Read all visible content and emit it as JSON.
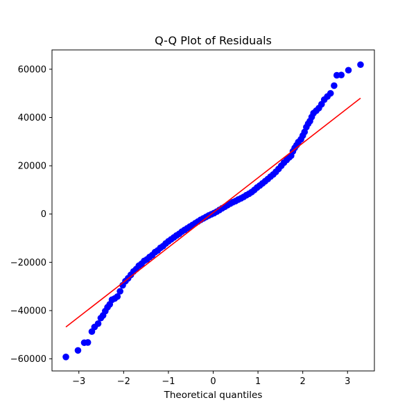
{
  "chart_data": {
    "type": "scatter",
    "title": "Q-Q Plot of Residuals",
    "xlabel": "Theoretical quantiles",
    "ylabel": "",
    "xlim": [
      -3.6,
      3.6
    ],
    "ylim": [
      -65000,
      68000
    ],
    "x_ticks": [
      -3,
      -2,
      -1,
      0,
      1,
      2,
      3
    ],
    "x_tick_labels": [
      "−3",
      "−2",
      "−1",
      "0",
      "1",
      "2",
      "3"
    ],
    "y_ticks": [
      -60000,
      -40000,
      -20000,
      0,
      20000,
      40000,
      60000
    ],
    "y_tick_labels": [
      "−60000",
      "−40000",
      "−20000",
      "0",
      "20000",
      "40000",
      "60000"
    ],
    "grid": false,
    "series": [
      {
        "kind": "points",
        "color": "#0000ff",
        "points": [
          [
            -3.29,
            -59200
          ],
          [
            -3.02,
            -56500
          ],
          [
            -2.88,
            -53300
          ],
          [
            -2.8,
            -53200
          ],
          [
            -2.71,
            -48700
          ],
          [
            -2.65,
            -46800
          ],
          [
            -2.57,
            -45400
          ],
          [
            -2.51,
            -43100
          ],
          [
            -2.46,
            -42000
          ],
          [
            -2.41,
            -40200
          ],
          [
            -2.36,
            -38600
          ],
          [
            -2.31,
            -37400
          ],
          [
            -2.26,
            -35500
          ],
          [
            -2.2,
            -35000
          ],
          [
            -2.14,
            -34200
          ],
          [
            -2.08,
            -32000
          ],
          [
            -2.02,
            -29500
          ],
          [
            -1.96,
            -27800
          ],
          [
            -1.9,
            -26600
          ],
          [
            -1.84,
            -25200
          ],
          [
            -1.78,
            -23800
          ],
          [
            -1.72,
            -22800
          ],
          [
            -1.66,
            -21400
          ],
          [
            -1.6,
            -20600
          ],
          [
            -1.54,
            -19400
          ],
          [
            -1.48,
            -18800
          ],
          [
            -1.42,
            -17800
          ],
          [
            -1.36,
            -17000
          ],
          [
            -1.3,
            -15800
          ],
          [
            -1.24,
            -15100
          ],
          [
            -1.18,
            -14000
          ],
          [
            -1.12,
            -13300
          ],
          [
            -1.06,
            -12200
          ],
          [
            -1.0,
            -11300
          ],
          [
            -0.94,
            -10500
          ],
          [
            -0.88,
            -9700
          ],
          [
            -0.82,
            -8900
          ],
          [
            -0.76,
            -8200
          ],
          [
            -0.7,
            -7300
          ],
          [
            -0.64,
            -6600
          ],
          [
            -0.58,
            -5900
          ],
          [
            -0.52,
            -5200
          ],
          [
            -0.46,
            -4500
          ],
          [
            -0.4,
            -3800
          ],
          [
            -0.34,
            -3100
          ],
          [
            -0.28,
            -2400
          ],
          [
            -0.22,
            -1800
          ],
          [
            -0.16,
            -1200
          ],
          [
            -0.1,
            -600
          ],
          [
            -0.04,
            -100
          ],
          [
            0.02,
            400
          ],
          [
            0.08,
            1000
          ],
          [
            0.14,
            1700
          ],
          [
            0.2,
            2400
          ],
          [
            0.26,
            3000
          ],
          [
            0.32,
            3700
          ],
          [
            0.38,
            4300
          ],
          [
            0.44,
            4900
          ],
          [
            0.5,
            5400
          ],
          [
            0.56,
            6000
          ],
          [
            0.62,
            6500
          ],
          [
            0.68,
            7100
          ],
          [
            0.74,
            7800
          ],
          [
            0.8,
            8400
          ],
          [
            0.86,
            9100
          ],
          [
            0.92,
            10000
          ],
          [
            0.98,
            11000
          ],
          [
            1.04,
            11800
          ],
          [
            1.1,
            12700
          ],
          [
            1.16,
            13600
          ],
          [
            1.22,
            14500
          ],
          [
            1.28,
            15500
          ],
          [
            1.34,
            16400
          ],
          [
            1.4,
            17500
          ],
          [
            1.46,
            18700
          ],
          [
            1.52,
            20000
          ],
          [
            1.58,
            21300
          ],
          [
            1.64,
            22400
          ],
          [
            1.7,
            23500
          ],
          [
            1.74,
            24200
          ],
          [
            1.78,
            26000
          ],
          [
            1.82,
            27400
          ],
          [
            1.86,
            28500
          ],
          [
            1.9,
            29800
          ],
          [
            1.96,
            31000
          ],
          [
            2.0,
            32500
          ],
          [
            2.04,
            34000
          ],
          [
            2.08,
            36000
          ],
          [
            2.12,
            37400
          ],
          [
            2.16,
            38500
          ],
          [
            2.2,
            40200
          ],
          [
            2.24,
            41800
          ],
          [
            2.3,
            42800
          ],
          [
            2.36,
            43900
          ],
          [
            2.42,
            45500
          ],
          [
            2.48,
            47400
          ],
          [
            2.55,
            48700
          ],
          [
            2.62,
            50000
          ],
          [
            2.7,
            53200
          ],
          [
            2.76,
            57500
          ],
          [
            2.86,
            57600
          ],
          [
            3.02,
            59600
          ],
          [
            3.29,
            61900
          ]
        ]
      },
      {
        "kind": "line",
        "color": "#ff0000",
        "x": [
          -3.29,
          3.29
        ],
        "y": [
          -46800,
          48000
        ]
      }
    ]
  }
}
